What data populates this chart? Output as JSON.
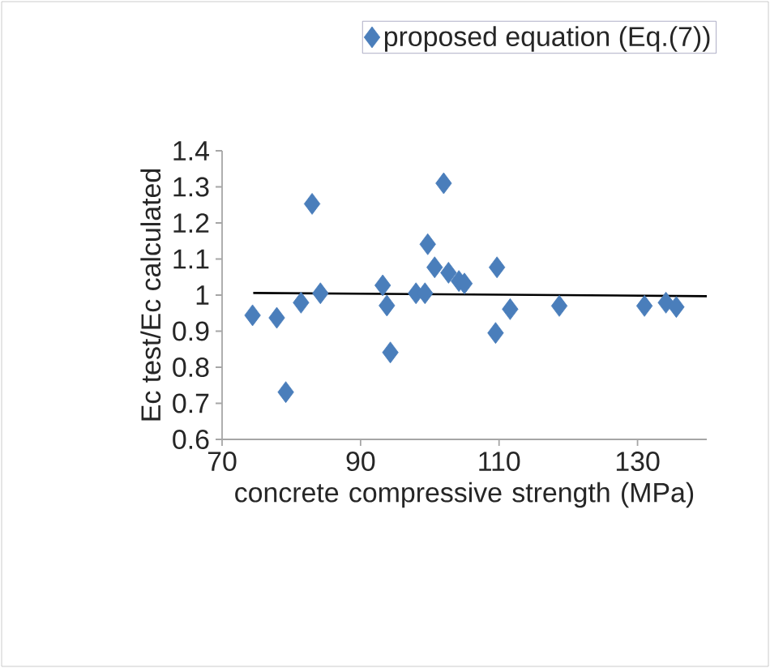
{
  "chart_data": {
    "type": "scatter",
    "xlabel": "concrete compressive strength (MPa)",
    "ylabel": "Ec test/Ec calculated",
    "xlim": [
      70,
      140
    ],
    "ylim": [
      0.6,
      1.4
    ],
    "xticks": [
      70,
      90,
      110,
      130
    ],
    "yticks": [
      0.6,
      0.7,
      0.8,
      0.9,
      1,
      1.1,
      1.2,
      1.3,
      1.4
    ],
    "legend": "top right",
    "marker": "diamond",
    "series": [
      {
        "name": "proposed equation (Eq.(7))",
        "color": "#4a7ebb",
        "x": [
          74.4,
          77.9,
          79.2,
          81.4,
          83.0,
          84.2,
          93.2,
          93.8,
          94.3,
          98.0,
          99.3,
          99.7,
          100.7,
          102.0,
          102.7,
          104.2,
          105.0,
          109.7,
          109.5,
          111.6,
          118.7,
          131.0,
          134.1,
          135.6
        ],
        "values": [
          0.944,
          0.937,
          0.731,
          0.979,
          1.253,
          1.005,
          1.027,
          0.971,
          0.841,
          1.005,
          1.005,
          1.141,
          1.077,
          1.31,
          1.062,
          1.039,
          1.032,
          1.077,
          0.895,
          0.961,
          0.97,
          0.97,
          0.979,
          0.967
        ]
      },
      {
        "type": "line",
        "color": "#000000",
        "marker": "none",
        "x": [
          74.5,
          140
        ],
        "values": [
          1.006,
          0.997
        ]
      }
    ]
  }
}
